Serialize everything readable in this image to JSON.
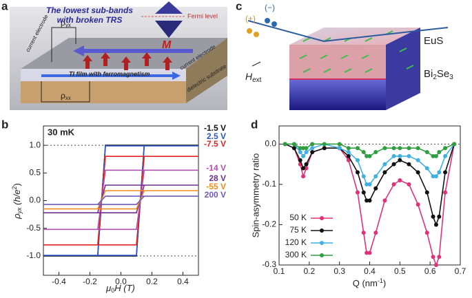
{
  "panel_labels": [
    "a",
    "b",
    "c",
    "d"
  ],
  "diagram_a": {
    "heading": [
      "The lowest sub-bands",
      "with broken TRS"
    ],
    "fermi": "Fermi level",
    "rho_yx": [
      "ρ",
      "yx"
    ],
    "magnetization": "M",
    "electrode_left": "current electrode",
    "electrode_right": "current electrode",
    "film": "TI film with ferromagnetism",
    "rho_xx": [
      "ρ",
      "xx"
    ],
    "substrate": "dielectric substrate"
  },
  "diagram_c": {
    "plus": "(+)",
    "minus": "(−)",
    "eus": "EuS",
    "field": [
      "H",
      "ext"
    ],
    "substrate": [
      "Bi",
      "2",
      "Se",
      "3"
    ]
  },
  "chart_data": [
    {
      "type": "line",
      "annotation": "30 mK",
      "xlabel_parts": [
        "μ",
        "0",
        "H (T)"
      ],
      "ylabel_parts": [
        "ρ",
        "yx",
        " (h/e",
        "2",
        ")"
      ],
      "x": [
        -0.5,
        0.1,
        0.15,
        0.5,
        -0.1,
        -0.15,
        -0.5
      ],
      "xlim": [
        -0.5,
        0.5
      ],
      "ylim": [
        -1.35,
        1.35
      ],
      "xticks": [
        -0.4,
        -0.2,
        {
          "value": 0,
          "label": "0.0"
        },
        0.2,
        0.4
      ],
      "yticks": [
        {
          "value": 1,
          "label": "1.0"
        },
        {
          "value": 0.5,
          "label": "0.5"
        },
        {
          "value": 0,
          "label": "0.0"
        },
        {
          "value": -0.5,
          "label": "-0.5"
        },
        {
          "value": -1,
          "label": "-1.0"
        }
      ],
      "reference_lines": [
        1,
        -1
      ],
      "series": [
        {
          "name": "-1.5 V",
          "color": "#111111",
          "values": [
            -1,
            -1,
            1,
            1,
            1,
            -1,
            -1
          ]
        },
        {
          "name": "2.5 V",
          "color": "#2a52c8",
          "values": [
            -0.99,
            -0.99,
            0.99,
            0.99,
            0.99,
            -0.99,
            -0.99
          ]
        },
        {
          "name": "-7.5 V",
          "color": "#e02424",
          "values": [
            -0.8,
            -0.8,
            0.8,
            0.8,
            0.8,
            -0.8,
            -0.8
          ]
        },
        {
          "name": "-14 V",
          "color": "#b04fb0",
          "values": [
            -0.52,
            -0.52,
            0.55,
            0.55,
            0.55,
            -0.52,
            -0.52
          ]
        },
        {
          "name": "28 V",
          "color": "#6a2f8f",
          "values": [
            -0.22,
            -0.22,
            0.28,
            0.28,
            0.28,
            -0.22,
            -0.22
          ]
        },
        {
          "name": "-55 V",
          "color": "#f08a1c",
          "values": [
            -0.15,
            -0.15,
            0.18,
            0.18,
            0.18,
            -0.15,
            -0.15
          ]
        },
        {
          "name": "200 V",
          "color": "#6d5ab8",
          "values": [
            -0.07,
            -0.07,
            0.08,
            0.08,
            0.08,
            -0.07,
            -0.07
          ]
        }
      ]
    },
    {
      "type": "scatter",
      "xlabel_parts": [
        "Q (nm",
        "-1",
        ")"
      ],
      "ylabel": "Spin-asymmetry ratio",
      "x": [
        0.12,
        0.15,
        0.17,
        0.18,
        0.19,
        0.21,
        0.25,
        0.3,
        0.33,
        0.36,
        0.38,
        0.39,
        0.4,
        0.42,
        0.45,
        0.48,
        0.5,
        0.53,
        0.56,
        0.59,
        0.61,
        0.62,
        0.63,
        0.65,
        0.68
      ],
      "xlim": [
        0.1,
        0.7
      ],
      "ylim": [
        -0.3,
        0.045
      ],
      "xticks": [
        0.1,
        0.2,
        0.3,
        0.4,
        0.5,
        0.6,
        0.7
      ],
      "yticks": [
        {
          "value": 0,
          "label": "0.0"
        },
        -0.1,
        -0.2,
        -0.3
      ],
      "reference_lines": [
        0
      ],
      "legend": "lower left",
      "series": [
        {
          "name": "50 K",
          "color": "#e0307a",
          "values": [
            0,
            -0.01,
            -0.05,
            -0.08,
            -0.06,
            -0.02,
            -0.01,
            -0.01,
            -0.04,
            -0.12,
            -0.22,
            -0.27,
            -0.27,
            -0.22,
            -0.14,
            -0.1,
            -0.09,
            -0.1,
            -0.15,
            -0.22,
            -0.28,
            -0.3,
            -0.28,
            -0.12,
            0
          ]
        },
        {
          "name": "75 K",
          "color": "#111111",
          "values": [
            0,
            -0.01,
            -0.04,
            -0.06,
            -0.05,
            -0.02,
            -0.01,
            -0.01,
            -0.03,
            -0.07,
            -0.12,
            -0.14,
            -0.14,
            -0.11,
            -0.07,
            -0.05,
            -0.04,
            -0.05,
            -0.07,
            -0.12,
            -0.18,
            -0.2,
            -0.18,
            -0.07,
            0
          ]
        },
        {
          "name": "120 K",
          "color": "#3fb0e0",
          "values": [
            0,
            0,
            -0.02,
            -0.03,
            -0.02,
            -0.01,
            0,
            -0.01,
            -0.02,
            -0.04,
            -0.08,
            -0.1,
            -0.1,
            -0.08,
            -0.05,
            -0.03,
            -0.03,
            -0.03,
            -0.04,
            -0.06,
            -0.08,
            -0.08,
            -0.07,
            -0.03,
            0
          ]
        },
        {
          "name": "300 K",
          "color": "#2f9e3f",
          "values": [
            0,
            0,
            -0.01,
            -0.01,
            -0.01,
            0,
            0,
            0,
            -0.01,
            -0.01,
            -0.02,
            -0.03,
            -0.03,
            -0.02,
            -0.01,
            -0.01,
            -0.01,
            -0.01,
            -0.01,
            -0.02,
            -0.03,
            -0.03,
            -0.02,
            -0.01,
            0
          ]
        }
      ]
    }
  ]
}
